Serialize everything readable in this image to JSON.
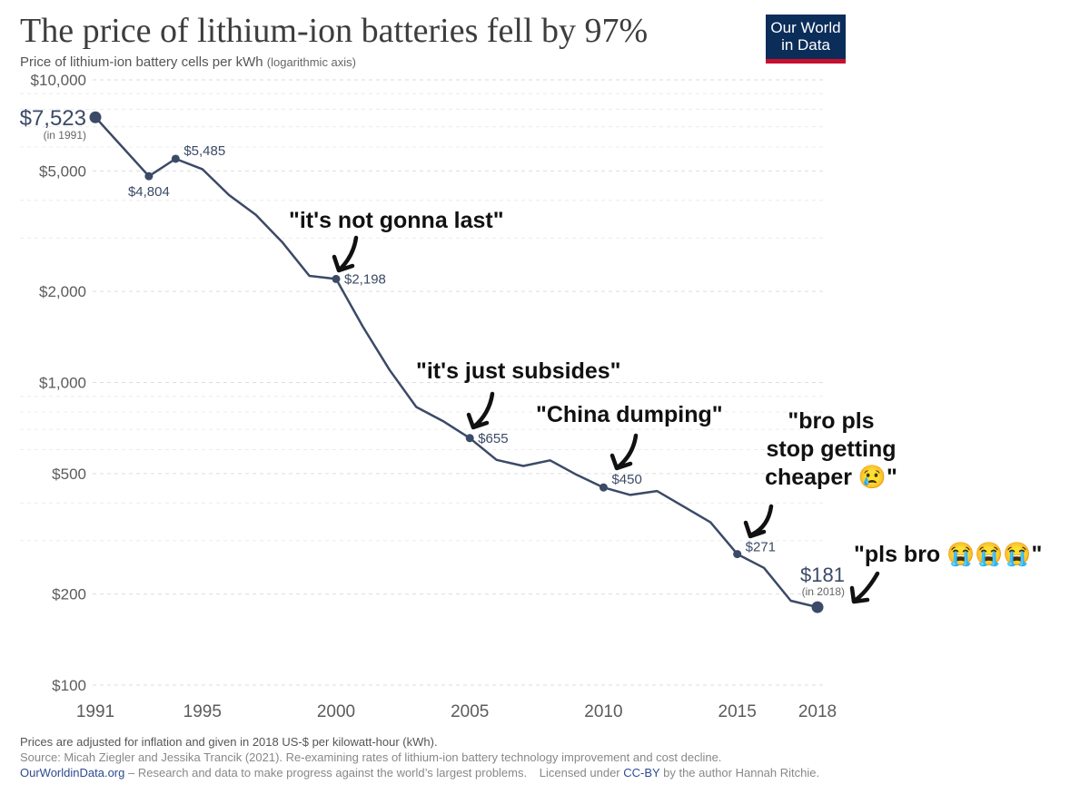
{
  "header": {
    "title": "The price of lithium-ion batteries fell by 97%",
    "subtitle": "Price of lithium-ion battery cells per kWh",
    "subtitle_note": "(logarithmic axis)",
    "logo_line1": "Our World",
    "logo_line2": "in Data"
  },
  "chart_data": {
    "type": "line",
    "title": "The price of lithium-ion batteries fell by 97%",
    "ylabel": "Price of lithium-ion battery cells per kWh",
    "yscale": "log",
    "ylim": [
      100,
      10000
    ],
    "xlim": [
      1991,
      2018
    ],
    "grid": true,
    "x": [
      1991,
      1993,
      1994,
      1995,
      1996,
      1997,
      1998,
      1999,
      2000,
      2001,
      2002,
      2003,
      2004,
      2005,
      2006,
      2007,
      2008,
      2009,
      2010,
      2011,
      2012,
      2013,
      2014,
      2015,
      2016,
      2017,
      2018
    ],
    "y": [
      7523,
      4804,
      5485,
      5070,
      4160,
      3580,
      2900,
      2250,
      2198,
      1530,
      1100,
      830,
      745,
      655,
      555,
      530,
      553,
      495,
      450,
      425,
      438,
      389,
      345,
      271,
      244,
      190,
      181
    ],
    "x_ticks": [
      {
        "value": 1991,
        "label": "1991"
      },
      {
        "value": 1995,
        "label": "1995"
      },
      {
        "value": 2000,
        "label": "2000"
      },
      {
        "value": 2005,
        "label": "2005"
      },
      {
        "value": 2010,
        "label": "2010"
      },
      {
        "value": 2015,
        "label": "2015"
      },
      {
        "value": 2018,
        "label": "2018"
      }
    ],
    "y_ticks": [
      {
        "value": 10000,
        "label": "$10,000"
      },
      {
        "value": 5000,
        "label": "$5,000"
      },
      {
        "value": 2000,
        "label": "$2,000"
      },
      {
        "value": 1000,
        "label": "$1,000"
      },
      {
        "value": 500,
        "label": "$500"
      },
      {
        "value": 200,
        "label": "$200"
      },
      {
        "value": 100,
        "label": "$100"
      }
    ],
    "minor_gridlines": [
      3000,
      4000,
      6000,
      7000,
      8000,
      9000,
      300,
      400,
      600,
      700,
      800,
      900,
      3000
    ],
    "point_labels": [
      {
        "x": 1991,
        "y": 7523,
        "label": "$7,523",
        "sub": "(in 1991)"
      },
      {
        "x": 1993,
        "y": 4804,
        "label": "$4,804"
      },
      {
        "x": 1994,
        "y": 5485,
        "label": "$5,485"
      },
      {
        "x": 2000,
        "y": 2198,
        "label": "$2,198"
      },
      {
        "x": 2005,
        "y": 655,
        "label": "$655"
      },
      {
        "x": 2010,
        "y": 450,
        "label": "$450"
      },
      {
        "x": 2015,
        "y": 271,
        "label": "$271"
      },
      {
        "x": 2018,
        "y": 181,
        "label": "$181",
        "sub": "(in 2018)"
      }
    ],
    "annotations": [
      {
        "text": "\"it's not gonna last\"",
        "target_year": 2000
      },
      {
        "text": "\"it's just subsides\"",
        "target_year": 2005
      },
      {
        "text": "\"China dumping\"",
        "target_year": 2010
      },
      {
        "lines": [
          "\"bro pls",
          "stop getting",
          "cheaper 😢\""
        ],
        "target_year": 2015
      },
      {
        "text": "\"pls bro 😭😭😭\"",
        "target_year": 2018
      }
    ],
    "colors": {
      "line": "#3b4a66",
      "grid": "#dddddd",
      "tick_text": "#5b5b5b",
      "annotation": "#111111"
    }
  },
  "footer": {
    "note": "Prices are adjusted for inflation and given in 2018 US-$ per kilowatt-hour (kWh).",
    "source": "Source: Micah Ziegler and Jessika Trancik (2021). Re-examining rates of lithium-ion battery technology improvement and cost decline.",
    "site": "OurWorldinData.org",
    "site_desc": "– Research and data to make progress against the world’s largest problems.",
    "license_pre": "Licensed under",
    "license": "CC-BY",
    "license_post": "by the author Hannah Ritchie."
  }
}
